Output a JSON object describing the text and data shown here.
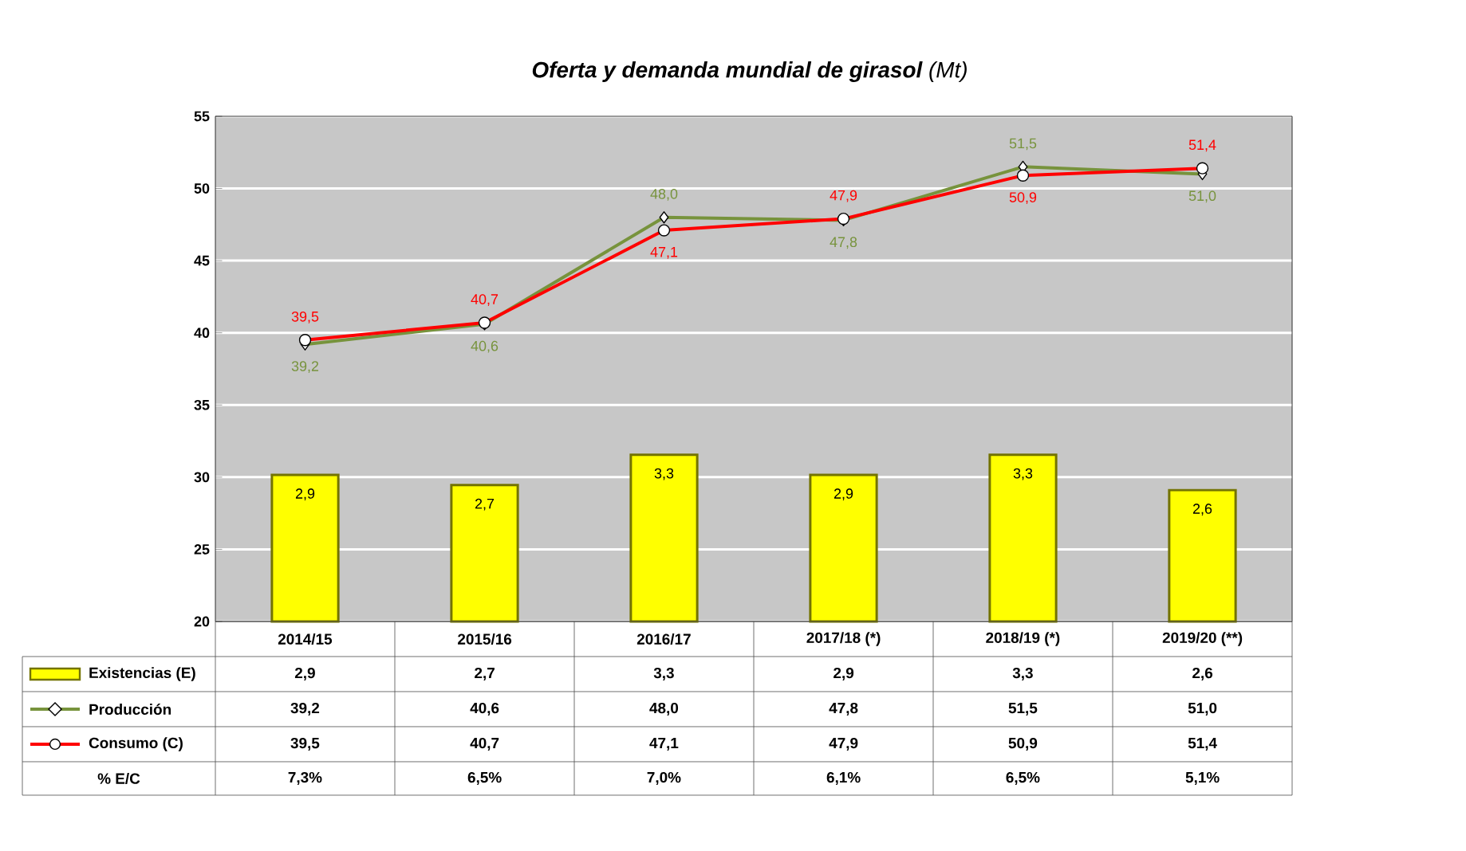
{
  "chart_data": {
    "type": "bar",
    "title": "**Oferta y demanda mundial de girasol** (Mt)",
    "categories": [
      "2014/15",
      "2015/16",
      "2016/17",
      "2017/18 (*)",
      "2018/19 (*)",
      "2019/20 (**)"
    ],
    "series": [
      {
        "name": "Existencias (E)",
        "axis": "y2",
        "color": "#ffff00",
        "values": [
          2.9,
          2.7,
          3.3,
          2.9,
          3.3,
          2.6
        ],
        "value_labels": [
          "2,9",
          "2,7",
          "3,3",
          "2,9",
          "3,3",
          "2,6"
        ]
      },
      {
        "name": "Producción",
        "type": "line",
        "marker": "diamond",
        "color": "#77933c",
        "values": [
          39.2,
          40.6,
          48.0,
          47.8,
          51.5,
          51.0
        ],
        "value_labels": [
          "39,2",
          "40,6",
          "48,0",
          "47,8",
          "51,5",
          "51,0"
        ]
      },
      {
        "name": "Consumo (C)",
        "type": "line",
        "marker": "circle",
        "color": "#ff0000",
        "values": [
          39.5,
          40.7,
          47.1,
          47.9,
          50.9,
          51.4
        ],
        "value_labels": [
          "39,5",
          "40,7",
          "47,1",
          "47,9",
          "50,9",
          "51,4"
        ]
      }
    ],
    "ylim": [
      20,
      55
    ],
    "yticks": [
      20,
      25,
      30,
      35,
      40,
      45,
      50,
      55
    ],
    "y2lim": [
      0,
      10
    ],
    "grid": "y",
    "legend": "bottom",
    "annotations": [
      "% E/C",
      "7,3%",
      "6,5%",
      "7,0%",
      "6,1%",
      "6,5%",
      "5,1%"
    ]
  }
}
